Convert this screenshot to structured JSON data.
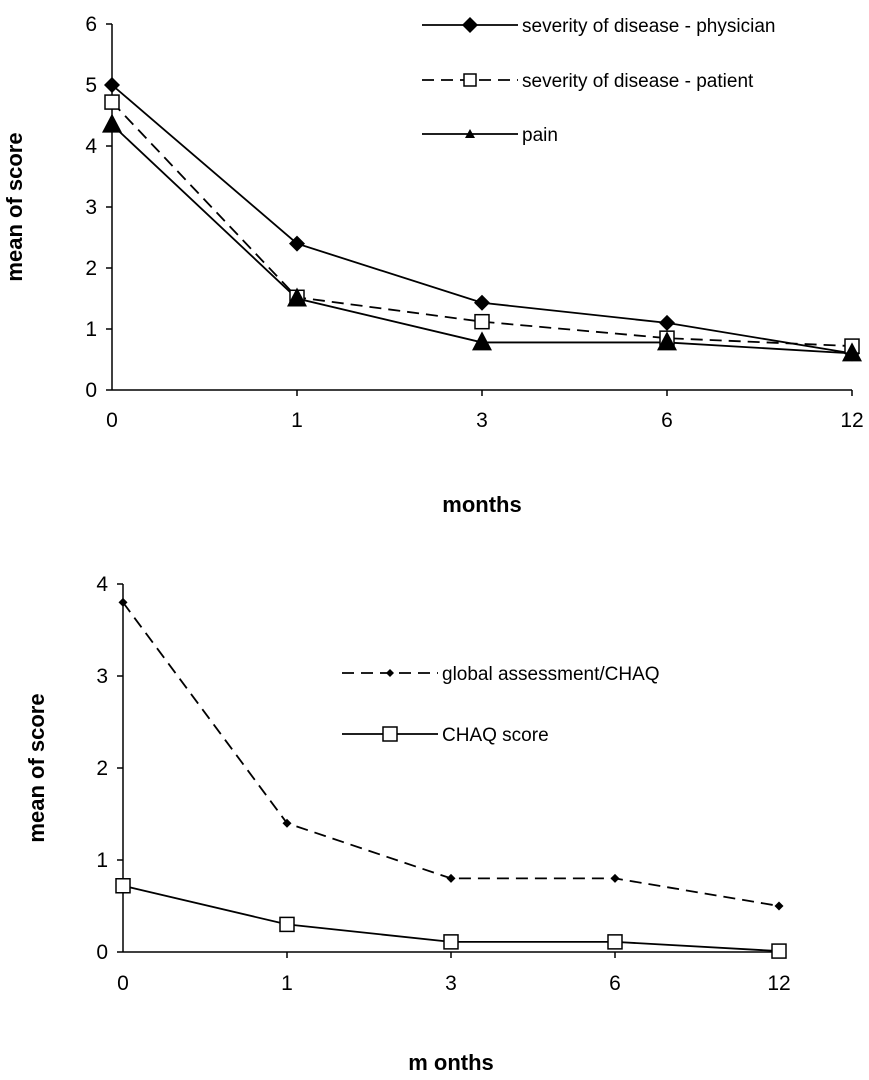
{
  "chart_data": [
    {
      "type": "line",
      "categories": [
        "0",
        "1",
        "3",
        "6",
        "12"
      ],
      "ylim": [
        0,
        6
      ],
      "yticks": [
        0,
        1,
        2,
        3,
        4,
        5,
        6
      ],
      "xlabel": "months",
      "ylabel": "mean of score",
      "grid": false,
      "legend_position": "top-right",
      "series": [
        {
          "name": "severity of disease - physician",
          "values": [
            5.0,
            2.4,
            1.43,
            1.1,
            0.6
          ],
          "marker": "filled-diamond",
          "line": "solid"
        },
        {
          "name": "severity of disease - patient",
          "values": [
            4.72,
            1.52,
            1.12,
            0.85,
            0.72
          ],
          "marker": "open-square",
          "line": "dashed"
        },
        {
          "name": "pain",
          "values": [
            4.35,
            1.5,
            0.78,
            0.78,
            0.6
          ],
          "marker": "filled-triangle",
          "line": "solid"
        }
      ]
    },
    {
      "type": "line",
      "categories": [
        "0",
        "1",
        "3",
        "6",
        "12"
      ],
      "ylim": [
        0,
        4
      ],
      "yticks": [
        0,
        1,
        2,
        3,
        4
      ],
      "xlabel": "m onths",
      "ylabel": "mean of score",
      "grid": false,
      "legend_position": "top-right",
      "series": [
        {
          "name": "global assessment/CHAQ",
          "values": [
            3.8,
            1.4,
            0.8,
            0.8,
            0.5
          ],
          "marker": "small-filled-diamond",
          "line": "dashed"
        },
        {
          "name": "CHAQ score",
          "values": [
            0.72,
            0.3,
            0.11,
            0.11,
            0.01
          ],
          "marker": "open-square",
          "line": "solid"
        }
      ]
    }
  ]
}
